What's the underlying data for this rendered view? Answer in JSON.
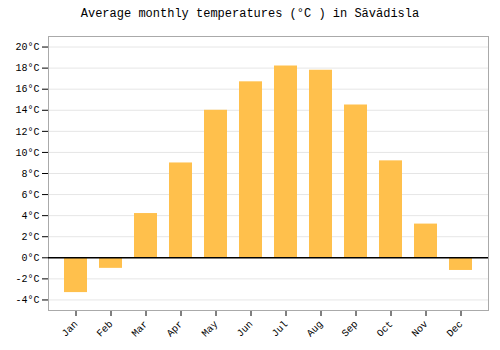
{
  "chart_data": {
    "type": "bar",
    "title": "Average monthly temperatures (°C ) in Săvădisla",
    "categories": [
      "Jan",
      "Feb",
      "Mar",
      "Apr",
      "May",
      "Jun",
      "Jul",
      "Aug",
      "Sep",
      "Oct",
      "Nov",
      "Dec"
    ],
    "values": [
      -3.3,
      -1.0,
      4.2,
      9.0,
      14.0,
      16.7,
      18.2,
      17.8,
      14.5,
      9.2,
      3.2,
      -1.2
    ],
    "color": "#FFC04C",
    "ylim": [
      -5,
      21
    ],
    "yticks": [
      {
        "value": -4,
        "label": "-4°C"
      },
      {
        "value": -2,
        "label": "-2°C"
      },
      {
        "value": 0,
        "label": "0°C"
      },
      {
        "value": 2,
        "label": "2°C"
      },
      {
        "value": 4,
        "label": "4°C"
      },
      {
        "value": 6,
        "label": "6°C"
      },
      {
        "value": 8,
        "label": "8°C"
      },
      {
        "value": 10,
        "label": "10°C"
      },
      {
        "value": 12,
        "label": "12°C"
      },
      {
        "value": 14,
        "label": "14°C"
      },
      {
        "value": 16,
        "label": "16°C"
      },
      {
        "value": 18,
        "label": "18°C"
      },
      {
        "value": 20,
        "label": "20°C"
      }
    ],
    "grid": true
  }
}
